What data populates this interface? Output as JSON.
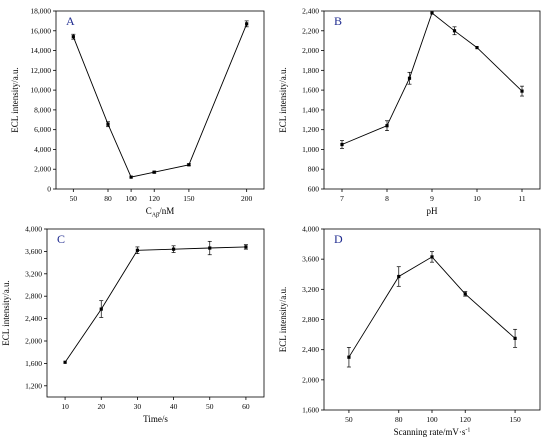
{
  "chart_data": [
    {
      "type": "line",
      "panel_label": "A",
      "xlabel": "C",
      "xlabel_sub": "Aβ",
      "xlabel_suffix": "/nM",
      "ylabel": "ECL intensity/a.u.",
      "x_ticks": [
        50,
        80,
        100,
        120,
        150,
        200
      ],
      "y_ticks": [
        "0",
        "2,000",
        "4,000",
        "6,000",
        "8,000",
        "10,000",
        "12,000",
        "14,000",
        "16,000",
        "18,000"
      ],
      "xlim": [
        35,
        215
      ],
      "ylim": [
        0,
        18000
      ],
      "series": [
        {
          "x": [
            50,
            80,
            100,
            120,
            150,
            200
          ],
          "y": [
            15400,
            6550,
            1200,
            1700,
            2450,
            16700
          ],
          "err": [
            250,
            250,
            0,
            100,
            100,
            300
          ]
        }
      ]
    },
    {
      "type": "line",
      "panel_label": "B",
      "xlabel": "pH",
      "ylabel": "ECL intensity/a.u.",
      "x_ticks": [
        7,
        8,
        9,
        10,
        11
      ],
      "y_ticks": [
        "600",
        "800",
        "1,000",
        "1,200",
        "1,400",
        "1,600",
        "1,800",
        "2,000",
        "2,200",
        "2,400"
      ],
      "xlim": [
        6.6,
        11.4
      ],
      "ylim": [
        600,
        2400
      ],
      "series": [
        {
          "x": [
            7,
            8,
            8.5,
            9,
            9.5,
            10,
            11
          ],
          "y": [
            1050,
            1240,
            1720,
            2380,
            2200,
            2030,
            1590
          ],
          "err": [
            40,
            50,
            60,
            0,
            40,
            0,
            50
          ]
        }
      ]
    },
    {
      "type": "line",
      "panel_label": "C",
      "xlabel": "Time/s",
      "ylabel": "ECL intensity/a.u.",
      "x_ticks": [
        10,
        20,
        30,
        40,
        50,
        60
      ],
      "y_ticks": [
        "1,200",
        "1,600",
        "2,000",
        "2,400",
        "2,800",
        "3,200",
        "3,600",
        "4,000"
      ],
      "xlim": [
        5,
        65
      ],
      "ylim": [
        1000,
        4000
      ],
      "series": [
        {
          "x": [
            10,
            20,
            30,
            40,
            50,
            60
          ],
          "y": [
            1620,
            2570,
            3620,
            3640,
            3660,
            3680
          ],
          "err": [
            0,
            150,
            60,
            60,
            120,
            40
          ]
        }
      ]
    },
    {
      "type": "line",
      "panel_label": "D",
      "xlabel": "Scanning rate/mV·s",
      "xlabel_sup": "-1",
      "ylabel": "ECL intensity/a.u.",
      "x_ticks": [
        50,
        80,
        100,
        120,
        150
      ],
      "y_ticks": [
        "1,600",
        "2,000",
        "2,400",
        "2,800",
        "3,200",
        "3,600",
        "4,000"
      ],
      "xlim": [
        35,
        165
      ],
      "ylim": [
        1600,
        4000
      ],
      "series": [
        {
          "x": [
            50,
            80,
            100,
            120,
            150
          ],
          "y": [
            2300,
            3370,
            3630,
            3140,
            2550
          ],
          "err": [
            130,
            130,
            70,
            30,
            120
          ]
        }
      ]
    }
  ]
}
